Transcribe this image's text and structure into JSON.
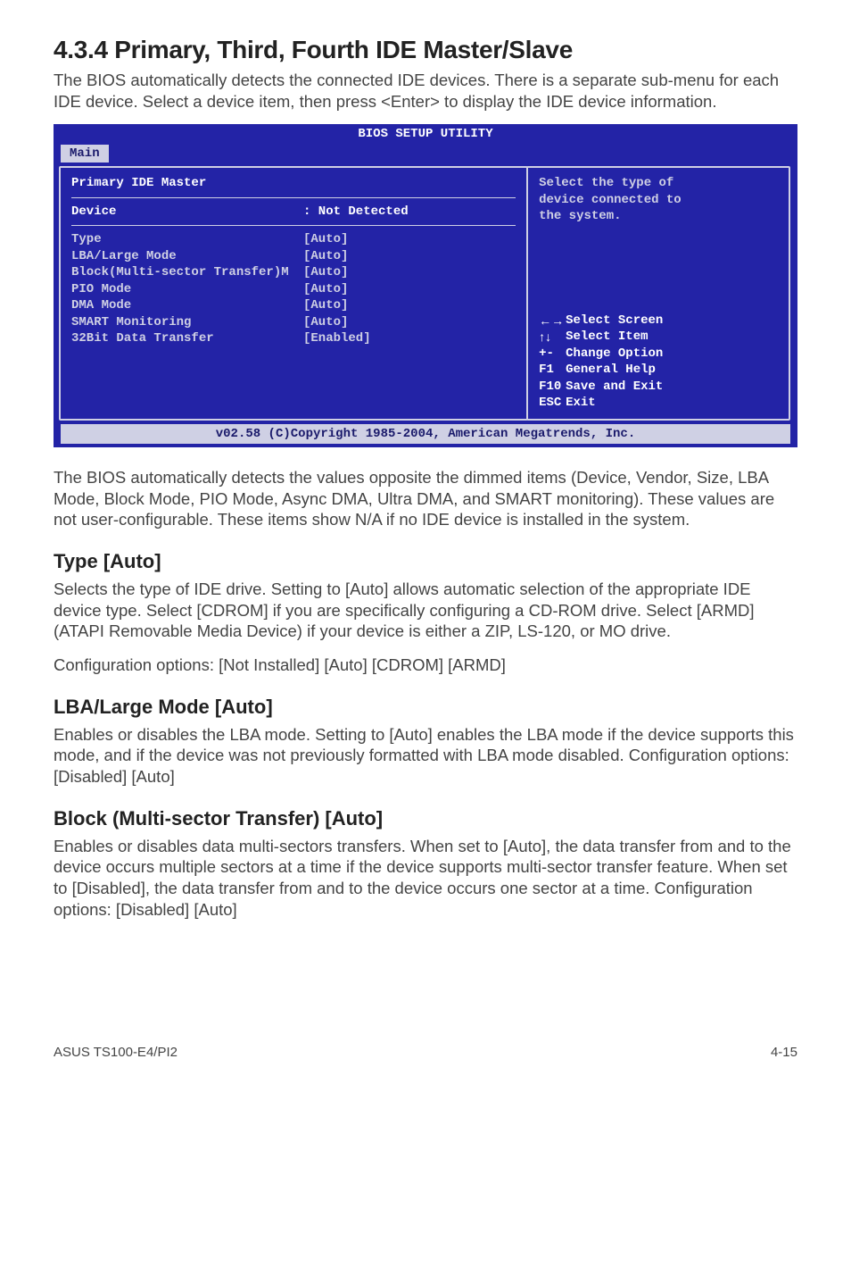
{
  "section": {
    "number": "4.3.4",
    "title": "Primary, Third, Fourth IDE Master/Slave",
    "intro": "The BIOS automatically detects the connected IDE devices. There is a separate sub-menu for each IDE device. Select a device item, then press <Enter> to display the IDE device information."
  },
  "bios": {
    "title": "BIOS SETUP UTILITY",
    "tab": "Main",
    "left_header": "Primary IDE Master",
    "device_label": "Device",
    "device_value": ": Not Detected",
    "rows": [
      {
        "l": "Type",
        "v": "[Auto]"
      },
      {
        "l": "LBA/Large Mode",
        "v": "[Auto]"
      },
      {
        "l": "Block(Multi-sector Transfer)M",
        "v": "[Auto]"
      },
      {
        "l": "PIO Mode",
        "v": "[Auto]"
      },
      {
        "l": "DMA Mode",
        "v": "[Auto]"
      },
      {
        "l": "SMART Monitoring",
        "v": "[Auto]"
      },
      {
        "l": "32Bit Data Transfer",
        "v": "[Enabled]"
      }
    ],
    "help1_l1": "Select the type of",
    "help1_l2": "device connected to",
    "help1_l3": "the system.",
    "help2": [
      {
        "k": "←→",
        "t": "Select Screen"
      },
      {
        "k": "↑↓",
        "t": "Select Item"
      },
      {
        "k": "+-",
        "t": "Change Option"
      },
      {
        "k": "F1",
        "t": "General Help"
      },
      {
        "k": "F10",
        "t": "Save and Exit"
      },
      {
        "k": "ESC",
        "t": "Exit"
      }
    ],
    "foot": "v02.58 (C)Copyright 1985-2004, American Megatrends, Inc."
  },
  "after_bios": "The BIOS automatically detects the values opposite the dimmed items (Device, Vendor, Size, LBA Mode, Block Mode, PIO Mode, Async DMA, Ultra DMA, and SMART monitoring). These values are not user-configurable. These items show N/A if no IDE device is installed in the system.",
  "type": {
    "h": "Type [Auto]",
    "p": "Selects the type of IDE drive. Setting to [Auto] allows automatic selection of the appropriate IDE device type. Select [CDROM] if you are specifically configuring a CD-ROM drive. Select [ARMD] (ATAPI Removable Media Device) if your device is either a ZIP, LS-120, or MO drive.",
    "opts": "Configuration options: [Not Installed] [Auto] [CDROM] [ARMD]"
  },
  "lba": {
    "h": "LBA/Large Mode [Auto]",
    "p": "Enables or disables the LBA mode. Setting to [Auto] enables the LBA mode if the device supports this mode, and if the device was not previously formatted with LBA mode disabled. Configuration options: [Disabled] [Auto]"
  },
  "block": {
    "h": "Block (Multi-sector Transfer) [Auto]",
    "p": "Enables or disables data multi-sectors transfers. When set to [Auto], the data transfer from and to the device occurs multiple sectors at a time if the device supports multi-sector transfer feature. When set to [Disabled], the data transfer from and to the device occurs one sector at a time. Configuration options: [Disabled] [Auto]"
  },
  "footer": {
    "left": "ASUS TS100-E4/PI2",
    "right": "4-15"
  }
}
